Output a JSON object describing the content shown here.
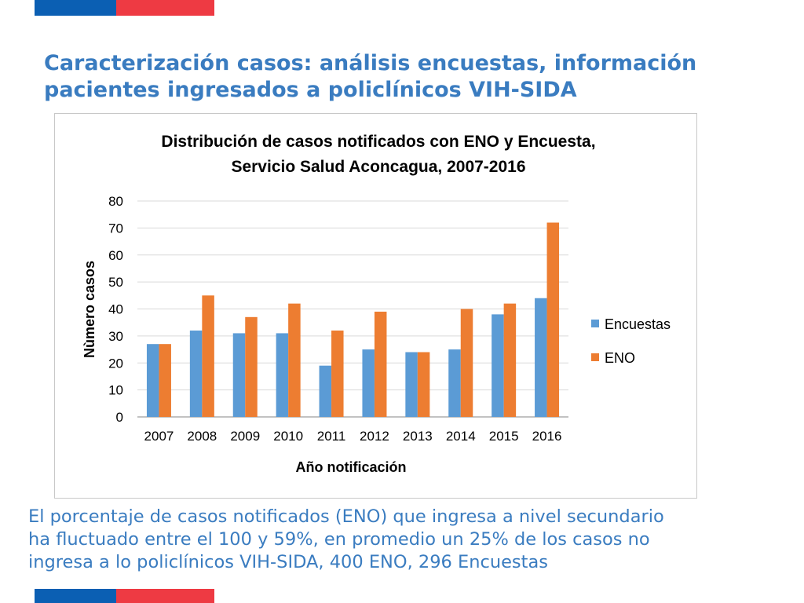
{
  "slide": {
    "title_line1": "Caracterización casos: análisis encuestas, información",
    "title_line2": "pacientes ingresados a policlínicos VIH-SIDA",
    "caption_line1": "El porcentaje de casos notificados (ENO) que ingresa a nivel secundario",
    "caption_line2": "ha fluctuado entre el 100 y 59%, en promedio un 25% de los casos no",
    "caption_line3": "ingresa a lo policlínicos VIH-SIDA, 400 ENO, 296 Encuestas"
  },
  "colors": {
    "title": "#3a7cc0",
    "flag_blue": "#0b5fb3",
    "flag_red": "#ee3a43",
    "encuestas": "#5b9bd5",
    "eno": "#ed7d31"
  },
  "chart_data": {
    "type": "bar",
    "title_line1": "Distribución de casos notificados con ENO y Encuesta,",
    "title_line2": "Servicio Salud Aconcagua, 2007-2016",
    "xlabel": "Año notificación",
    "ylabel": "Nùmero casos",
    "ylim": [
      0,
      80
    ],
    "yticks": [
      "0",
      "10",
      "20",
      "30",
      "40",
      "50",
      "60",
      "70",
      "80"
    ],
    "grid": true,
    "legend_position": "right",
    "categories": [
      "2007",
      "2008",
      "2009",
      "2010",
      "2011",
      "2012",
      "2013",
      "2014",
      "2015",
      "2016"
    ],
    "series": [
      {
        "name": "Encuestas",
        "values": [
          27,
          32,
          31,
          31,
          19,
          25,
          24,
          25,
          38,
          44
        ]
      },
      {
        "name": "ENO",
        "values": [
          27,
          45,
          37,
          42,
          32,
          39,
          24,
          40,
          42,
          72
        ]
      }
    ]
  }
}
